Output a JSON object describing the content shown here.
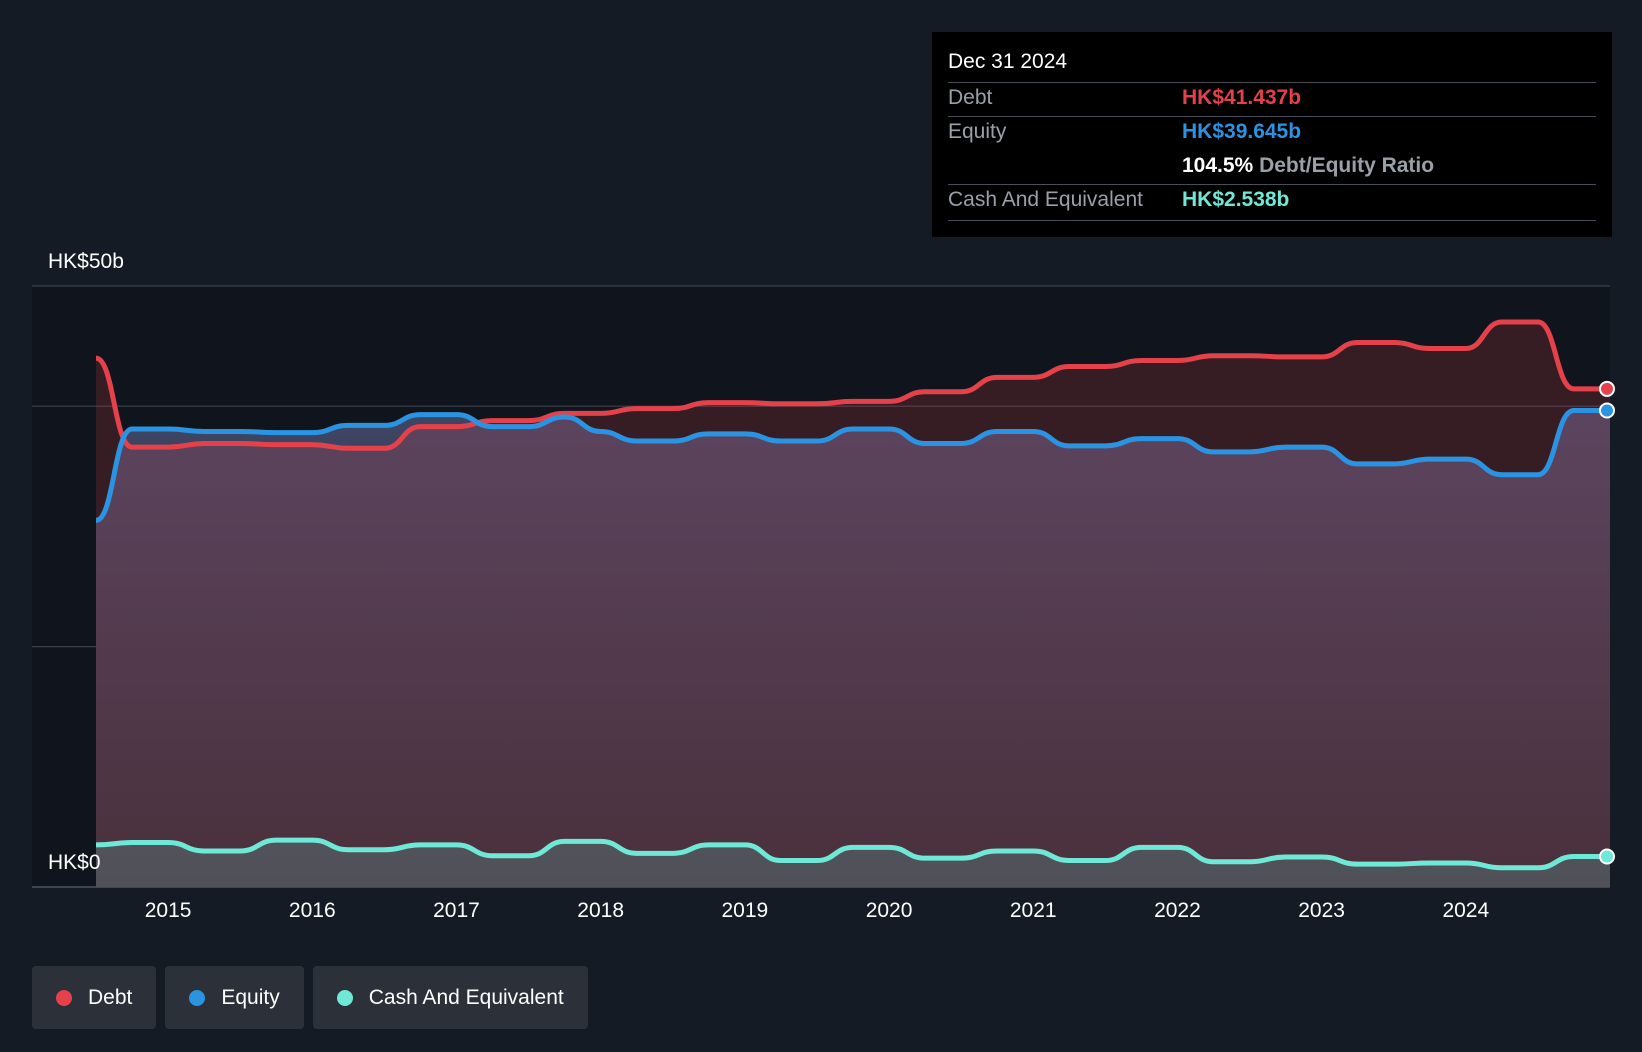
{
  "tooltip": {
    "date": "Dec 31 2024",
    "debt_label": "Debt",
    "debt_value": "HK$41.437b",
    "equity_label": "Equity",
    "equity_value": "HK$39.645b",
    "ratio_value": "104.5%",
    "ratio_label": "Debt/Equity Ratio",
    "cash_label": "Cash And Equivalent",
    "cash_value": "HK$2.538b"
  },
  "legend": {
    "debt": "Debt",
    "equity": "Equity",
    "cash": "Cash And Equivalent"
  },
  "colors": {
    "debt": "#e5414a",
    "equity": "#2a94e3",
    "cash": "#6ee9d8"
  },
  "chart_data": {
    "type": "line",
    "y_top_label": "HK$50b",
    "y_bottom_label": "HK$0",
    "ylim": [
      0,
      50
    ],
    "xlim": [
      2014.5,
      2025.0
    ],
    "x_ticks": [
      "2015",
      "2016",
      "2017",
      "2018",
      "2019",
      "2020",
      "2021",
      "2022",
      "2023",
      "2024"
    ],
    "grid": true,
    "series": [
      {
        "name": "Debt",
        "x": [
          2014.5,
          2014.75,
          2015.0,
          2015.25,
          2015.5,
          2015.75,
          2016.0,
          2016.25,
          2016.5,
          2016.75,
          2017.0,
          2017.25,
          2017.5,
          2017.75,
          2018.0,
          2018.25,
          2018.5,
          2018.75,
          2019.0,
          2019.25,
          2019.5,
          2019.75,
          2020.0,
          2020.25,
          2020.5,
          2020.75,
          2021.0,
          2021.25,
          2021.5,
          2021.75,
          2022.0,
          2022.25,
          2022.5,
          2022.75,
          2023.0,
          2023.25,
          2023.5,
          2023.75,
          2024.0,
          2024.25,
          2024.5,
          2024.75,
          2025.0
        ],
        "values": [
          44.0,
          36.6,
          36.6,
          36.9,
          36.9,
          36.8,
          36.8,
          36.5,
          36.5,
          38.3,
          38.3,
          38.8,
          38.8,
          39.4,
          39.4,
          39.8,
          39.8,
          40.3,
          40.3,
          40.2,
          40.2,
          40.4,
          40.4,
          41.2,
          41.2,
          42.4,
          42.4,
          43.3,
          43.3,
          43.8,
          43.8,
          44.2,
          44.2,
          44.1,
          44.1,
          45.3,
          45.3,
          44.8,
          44.8,
          47.0,
          47.0,
          41.437,
          41.437
        ]
      },
      {
        "name": "Equity",
        "x": [
          2014.5,
          2014.75,
          2015.0,
          2015.25,
          2015.5,
          2015.75,
          2016.0,
          2016.25,
          2016.5,
          2016.75,
          2017.0,
          2017.25,
          2017.5,
          2017.75,
          2018.0,
          2018.25,
          2018.5,
          2018.75,
          2019.0,
          2019.25,
          2019.5,
          2019.75,
          2020.0,
          2020.25,
          2020.5,
          2020.75,
          2021.0,
          2021.25,
          2021.5,
          2021.75,
          2022.0,
          2022.25,
          2022.5,
          2022.75,
          2023.0,
          2023.25,
          2023.5,
          2023.75,
          2024.0,
          2024.25,
          2024.5,
          2024.75,
          2025.0
        ],
        "values": [
          30.5,
          38.1,
          38.1,
          37.9,
          37.9,
          37.8,
          37.8,
          38.4,
          38.4,
          39.3,
          39.3,
          38.3,
          38.3,
          39.1,
          37.9,
          37.1,
          37.1,
          37.7,
          37.7,
          37.1,
          37.1,
          38.1,
          38.1,
          36.9,
          36.9,
          37.9,
          37.9,
          36.7,
          36.7,
          37.3,
          37.3,
          36.2,
          36.2,
          36.6,
          36.6,
          35.2,
          35.2,
          35.6,
          35.6,
          34.3,
          34.3,
          39.645,
          39.645
        ]
      },
      {
        "name": "Cash And Equivalent",
        "x": [
          2014.5,
          2014.75,
          2015.0,
          2015.25,
          2015.5,
          2015.75,
          2016.0,
          2016.25,
          2016.5,
          2016.75,
          2017.0,
          2017.25,
          2017.5,
          2017.75,
          2018.0,
          2018.25,
          2018.5,
          2018.75,
          2019.0,
          2019.25,
          2019.5,
          2019.75,
          2020.0,
          2020.25,
          2020.5,
          2020.75,
          2021.0,
          2021.25,
          2021.5,
          2021.75,
          2022.0,
          2022.25,
          2022.5,
          2022.75,
          2023.0,
          2023.25,
          2023.5,
          2023.75,
          2024.0,
          2024.25,
          2024.5,
          2024.75,
          2025.0
        ],
        "values": [
          3.5,
          3.7,
          3.7,
          3.0,
          3.0,
          3.9,
          3.9,
          3.1,
          3.1,
          3.5,
          3.5,
          2.6,
          2.6,
          3.8,
          3.8,
          2.8,
          2.8,
          3.5,
          3.5,
          2.2,
          2.2,
          3.3,
          3.3,
          2.4,
          2.4,
          3.0,
          3.0,
          2.2,
          2.2,
          3.3,
          3.3,
          2.1,
          2.1,
          2.5,
          2.5,
          1.9,
          1.9,
          2.0,
          2.0,
          1.6,
          1.6,
          2.538,
          2.538
        ]
      }
    ]
  }
}
